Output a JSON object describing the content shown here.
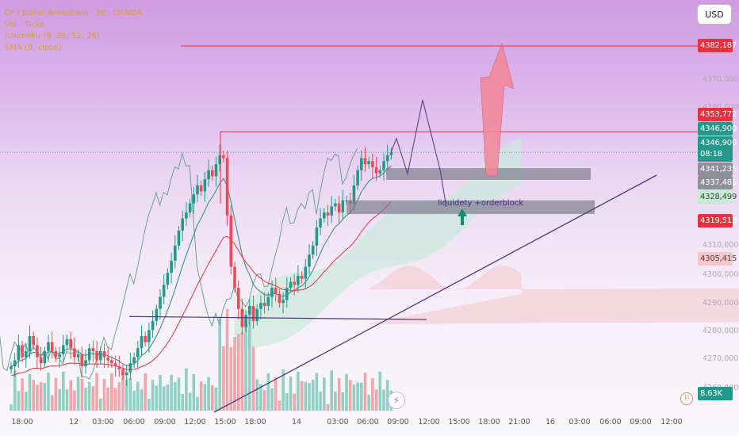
{
  "legend": {
    "symbol_line": "Or / Dollar Américain · 30 · OANDA",
    "vol_line": "Vol · Ticks",
    "ichimoku_line": "Ichimoku (9, 26, 52, 26)",
    "ema_line": "EMA (9, close)"
  },
  "currency_button": "USD",
  "price_labels": {
    "target": "4382,187",
    "resistance": "4353,772",
    "high": "4346,900",
    "last": "4346,900",
    "countdown": "08:18",
    "l1": "4341,235",
    "l2": "4337,485",
    "l3": "4328,499",
    "l4": "4319,513",
    "l5": "4305,415",
    "volume": "8,63K"
  },
  "colors": {
    "bull": "#22998a",
    "bear": "#f04a55",
    "target_line": "#e8313f",
    "trendline": "#4b3a78",
    "target_arrow": "#f2879a",
    "up_arrow": "#0d8f6e"
  },
  "annotation": "liquidety +orderblock",
  "chart_data": {
    "type": "candlestick",
    "instrument": "Or / Dollar Américain · 30 · OANDA",
    "y_ticks": [
      "4370,000",
      "4360,000",
      "4310,000",
      "4300,000",
      "4290,000",
      "4280,000",
      "4270,000",
      "4260,000"
    ],
    "x_ticks": [
      "18:00",
      "12",
      "03:00",
      "06:00",
      "09:00",
      "12:00",
      "15:00",
      "18:00",
      "14",
      "03:00",
      "06:00",
      "09:00",
      "12:00",
      "15:00",
      "18:00",
      "21:00",
      "16",
      "03:00",
      "06:00",
      "09:00",
      "12:00"
    ],
    "ylim": [
      4256,
      4387
    ],
    "candles_close": [
      4276,
      4278,
      4283,
      4279,
      4281,
      4286,
      4283,
      4279,
      4277,
      4281,
      4284,
      4281,
      4279,
      4280,
      4283,
      4285,
      4282,
      4279,
      4280,
      4276,
      4278,
      4282,
      4281,
      4278,
      4281,
      4279,
      4278,
      4277,
      4276,
      4275,
      4273,
      4274,
      4277,
      4279,
      4282,
      4286,
      4284,
      4288,
      4291,
      4295,
      4299,
      4303,
      4307,
      4311,
      4316,
      4321,
      4325,
      4327,
      4330,
      4333,
      4336,
      4334,
      4338,
      4341,
      4339,
      4343,
      4346,
      4345,
      4326,
      4309,
      4302,
      4295,
      4289,
      4293,
      4296,
      4291,
      4295,
      4297,
      4296,
      4299,
      4302,
      4300,
      4297,
      4298,
      4302,
      4304,
      4303,
      4306,
      4305,
      4309,
      4313,
      4316,
      4322,
      4325,
      4327,
      4326,
      4329,
      4330,
      4327,
      4331,
      4331,
      4330,
      4336,
      4341,
      4345,
      4343,
      4344,
      4342,
      4340,
      4341,
      4344,
      4346,
      4347
    ],
    "order_blocks": [
      {
        "label": "",
        "y_top": 4341.7,
        "y_bottom": 4337.8
      },
      {
        "label": "liquidety +orderblock",
        "y_top": 4331.0,
        "y_bottom": 4326.5
      }
    ],
    "target": 4382.187,
    "resistance": 4353.772,
    "projection_path": [
      4346.9,
      4351.5,
      4339.8,
      4364.3,
      4341.2,
      4330.2
    ]
  }
}
